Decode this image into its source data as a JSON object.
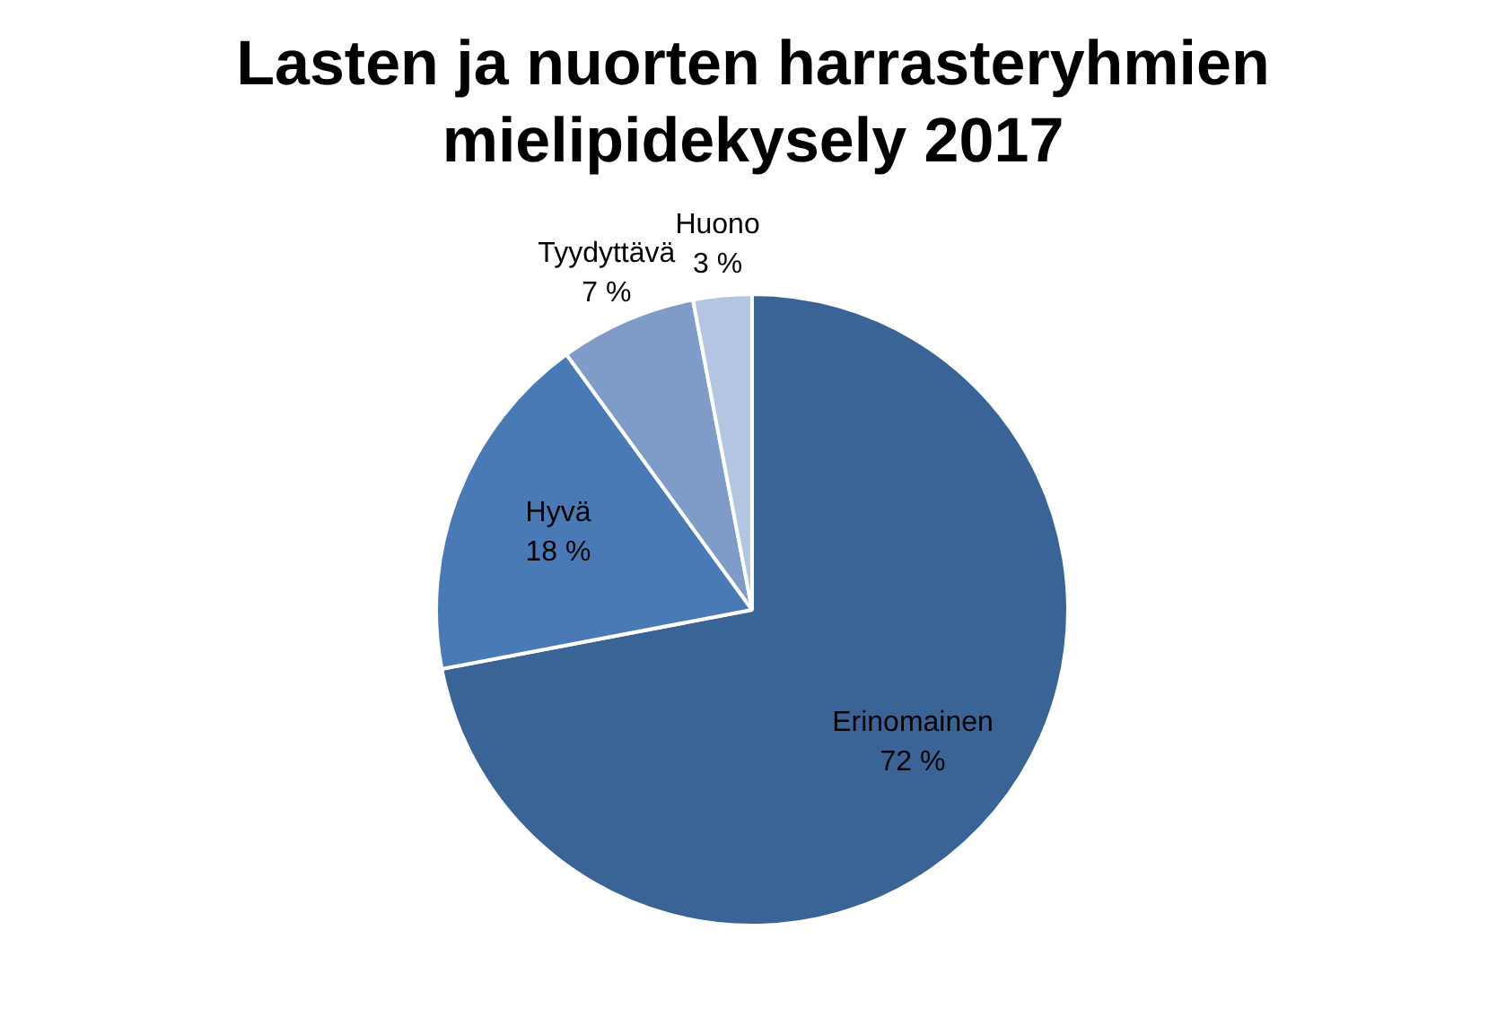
{
  "chart_data": {
    "type": "pie",
    "title": "Lasten ja nuorten harrasteryhmien mielipidekysely 2017",
    "categories": [
      "Erinomainen",
      "Hyvä",
      "Tyydyttävä",
      "Huono"
    ],
    "values": [
      72,
      18,
      7,
      3
    ],
    "value_labels": [
      "72 %",
      "18 %",
      "7 %",
      "3 %"
    ],
    "colors": [
      "#3b6496",
      "#4a7ab5",
      "#7f9cc9",
      "#b4c5e2"
    ],
    "legend": false
  }
}
